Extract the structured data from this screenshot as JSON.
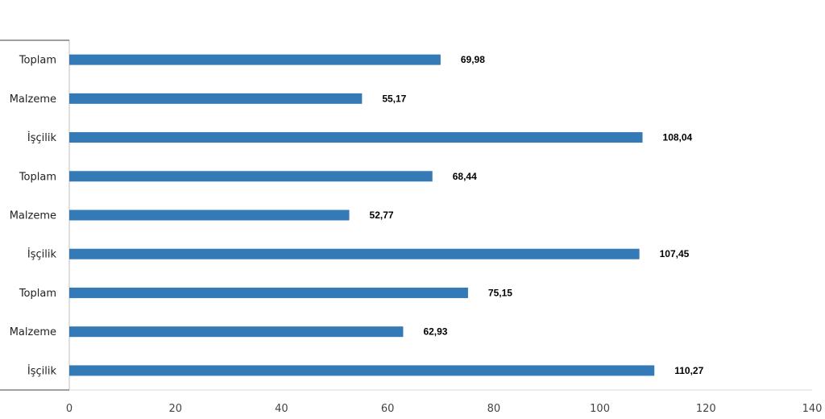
{
  "chart_data": {
    "type": "bar",
    "orientation": "horizontal",
    "title": "",
    "xlabel": "",
    "ylabel": "",
    "xlim": [
      0,
      140
    ],
    "xticks": [
      0,
      20,
      40,
      60,
      80,
      100,
      120,
      140
    ],
    "xtick_labels": [
      "0",
      "20",
      "40",
      "60",
      "80",
      "100",
      "120",
      "140"
    ],
    "grid": false,
    "legend": "none",
    "bar_color": "#337ab7",
    "categories": [
      "Toplam",
      "Malzeme",
      "İşçilik",
      "Toplam",
      "Malzeme",
      "İşçilik",
      "Toplam",
      "Malzeme",
      "İşçilik"
    ],
    "values": [
      69.98,
      55.17,
      108.04,
      68.44,
      52.77,
      107.45,
      75.15,
      62.93,
      110.27
    ],
    "value_labels": [
      "69,98",
      "55,17",
      "108,04",
      "68,44",
      "52,77",
      "107,45",
      "75,15",
      "62,93",
      "110,27"
    ]
  }
}
